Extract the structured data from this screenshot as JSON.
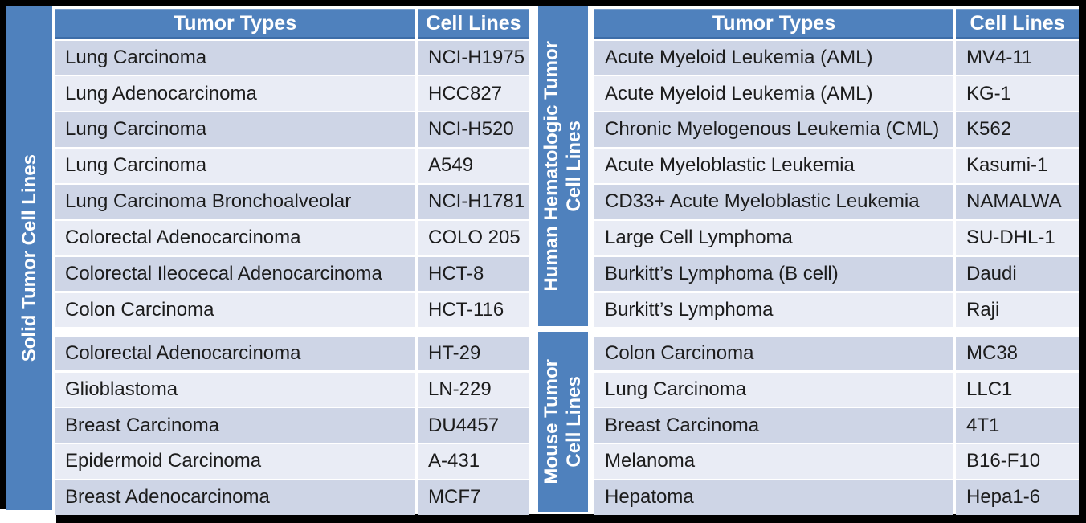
{
  "colors": {
    "accent_blue": "#4f81bd",
    "row_dark": "#ced5e6",
    "row_light": "#e9ecf5",
    "header_text": "#ffffff",
    "cell_text": "#1c1c1c",
    "frame": "#000000",
    "canvas": "#ffffff"
  },
  "left_table": {
    "side_label": "Solid Tumor Cell Lines",
    "header": {
      "tumor_types": "Tumor Types",
      "cell_lines": "Cell Lines"
    },
    "rows": [
      {
        "tumor": "Lung Carcinoma",
        "cell": "NCI-H1975"
      },
      {
        "tumor": "Lung Adenocarcinoma",
        "cell": "HCC827"
      },
      {
        "tumor": "Lung Carcinoma",
        "cell": "NCI-H520"
      },
      {
        "tumor": "Lung Carcinoma",
        "cell": "A549"
      },
      {
        "tumor": "Lung Carcinoma Bronchoalveolar",
        "cell": "NCI-H1781"
      },
      {
        "tumor": "Colorectal Adenocarcinoma",
        "cell": "COLO 205"
      },
      {
        "tumor": "Colorectal Ileocecal Adenocarcinoma",
        "cell": "HCT-8"
      },
      {
        "tumor": "Colon Carcinoma",
        "cell": "HCT-116"
      },
      {
        "tumor": "Colorectal Adenocarcinoma",
        "cell": "HT-29"
      },
      {
        "tumor": "Glioblastoma",
        "cell": "LN-229"
      },
      {
        "tumor": "Breast Carcinoma",
        "cell": "DU4457"
      },
      {
        "tumor": "Epidermoid Carcinoma",
        "cell": "A-431"
      },
      {
        "tumor": "Breast Adenocarcinoma",
        "cell": "MCF7"
      }
    ]
  },
  "right_table": {
    "header": {
      "tumor_types": "Tumor Types",
      "cell_lines": "Cell Lines"
    },
    "human_group": {
      "side_label_line1": "Human Hematologic Tumor",
      "side_label_line2": "Cell Lines",
      "rows": [
        {
          "tumor": "Acute Myeloid Leukemia (AML)",
          "cell": "MV4-11"
        },
        {
          "tumor": "Acute Myeloid Leukemia (AML)",
          "cell": "KG-1"
        },
        {
          "tumor": "Chronic Myelogenous Leukemia (CML)",
          "cell": "K562"
        },
        {
          "tumor": "Acute Myeloblastic Leukemia",
          "cell": "Kasumi-1"
        },
        {
          "tumor": "CD33+ Acute Myeloblastic Leukemia",
          "cell": "NAMALWA"
        },
        {
          "tumor": "Large Cell Lymphoma",
          "cell": "SU-DHL-1"
        },
        {
          "tumor": "Burkitt’s Lymphoma (B cell)",
          "cell": "Daudi"
        },
        {
          "tumor": "Burkitt’s Lymphoma",
          "cell": "Raji"
        }
      ]
    },
    "mouse_group": {
      "side_label_line1": "Mouse Tumor",
      "side_label_line2": "Cell Lines",
      "rows": [
        {
          "tumor": "Colon Carcinoma",
          "cell": "MC38"
        },
        {
          "tumor": "Lung Carcinoma",
          "cell": "LLC1"
        },
        {
          "tumor": "Breast Carcinoma",
          "cell": "4T1"
        },
        {
          "tumor": "Melanoma",
          "cell": "B16-F10"
        },
        {
          "tumor": "Hepatoma",
          "cell": "Hepa1-6"
        }
      ]
    }
  }
}
